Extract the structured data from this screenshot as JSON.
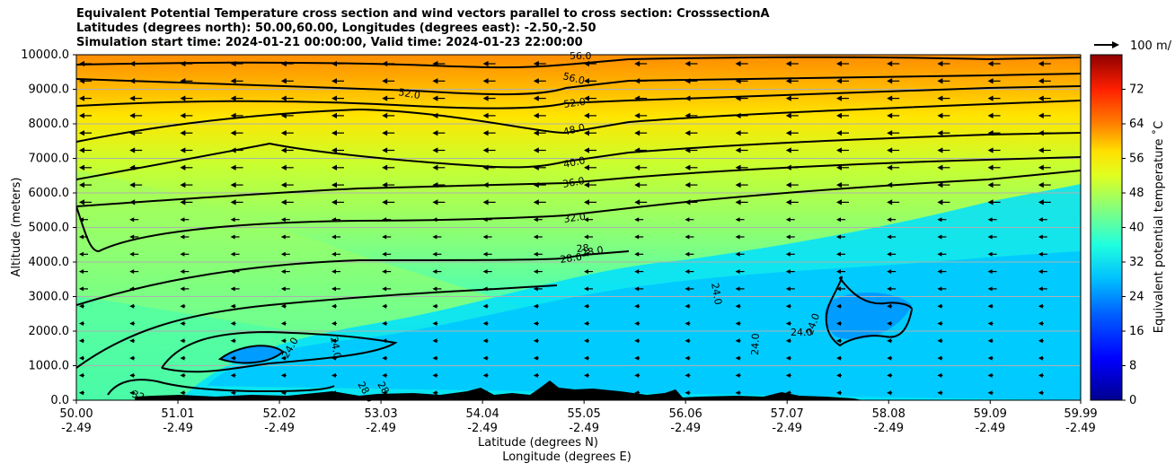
{
  "titles": {
    "line1": "Equivalent Potential Temperature cross section and wind vectors parallel to cross section: CrosssectionA",
    "line2": "Latitudes (degrees north): 50.00,60.00, Longitudes (degrees east): -2.50,-2.50",
    "line3": "Simulation start time: 2024-01-21 00:00:00, Valid time: 2024-01-23 22:00:00"
  },
  "vector_key_label": "100 m/",
  "chart_data": {
    "type": "heatmap",
    "ylabel": "Altitude (meters)",
    "xlabel_line1": "Latitude (degrees N)",
    "xlabel_line2": "Longitude (degrees E)",
    "ylim": [
      0,
      10000
    ],
    "yticks": [
      "0.0",
      "1000.0",
      "2000.0",
      "3000.0",
      "4000.0",
      "5000.0",
      "6000.0",
      "7000.0",
      "8000.0",
      "9000.0",
      "10000.0"
    ],
    "xticks": [
      {
        "lat": "50.00",
        "lon": "-2.49"
      },
      {
        "lat": "51.01",
        "lon": "-2.49"
      },
      {
        "lat": "52.02",
        "lon": "-2.49"
      },
      {
        "lat": "53.03",
        "lon": "-2.49"
      },
      {
        "lat": "54.04",
        "lon": "-2.49"
      },
      {
        "lat": "55.05",
        "lon": "-2.49"
      },
      {
        "lat": "56.06",
        "lon": "-2.49"
      },
      {
        "lat": "57.07",
        "lon": "-2.49"
      },
      {
        "lat": "58.08",
        "lon": "-2.49"
      },
      {
        "lat": "59.09",
        "lon": "-2.49"
      },
      {
        "lat": "59.99",
        "lon": "-2.49"
      }
    ],
    "grid": "horizontal",
    "colorbar": {
      "label": "Equivalent potential temperature ˚C",
      "range": [
        0,
        80
      ],
      "ticks": [
        "0",
        "8",
        "16",
        "24",
        "32",
        "40",
        "48",
        "56",
        "64",
        "72"
      ]
    },
    "contour_labels": [
      "56.0",
      "52.0",
      "52.0",
      "48.0",
      "40.0",
      "36.0",
      "32.0",
      "28.0",
      "28.0",
      "28",
      "24.0",
      "24.0",
      "24.0",
      "24.0",
      "24.0",
      "24.0",
      "32",
      "28.0",
      "28"
    ],
    "colors": {
      "very_cold": "#00008f",
      "cold": "#0060ff",
      "cool": "#00bfff",
      "mild": "#60ffa0",
      "warm": "#ffff00",
      "hot": "#ff8000",
      "very_hot": "#8f0000"
    }
  }
}
